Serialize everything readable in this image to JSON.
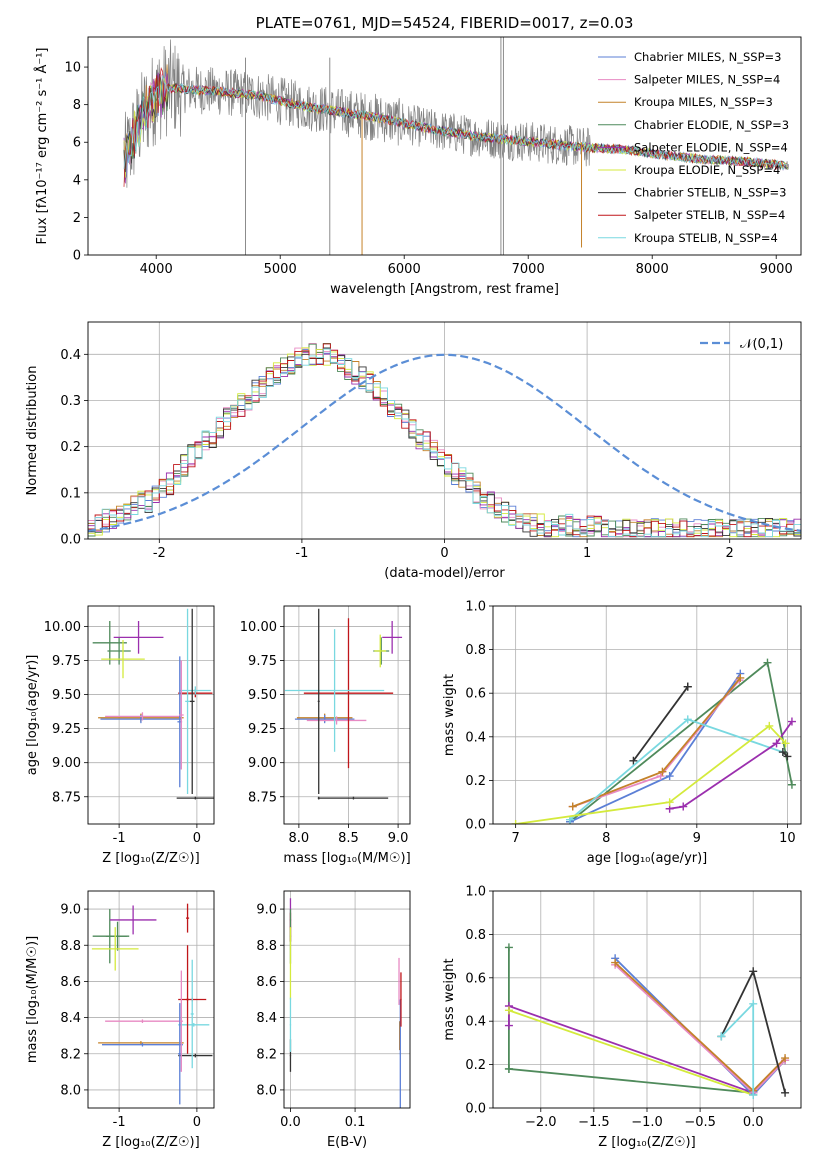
{
  "chart_data": [
    {
      "id": "spectrum",
      "type": "line",
      "title": "PLATE=0761, MJD=54524, FIBERID=0017, z=0.03",
      "xlabel": "wavelength [Angstrom, rest frame]",
      "ylabel": "Flux [fλ10⁻¹⁷ erg cm⁻² s⁻¹ Å⁻¹]",
      "xlim": [
        3450,
        9200
      ],
      "ylim": [
        0,
        11.6
      ],
      "xticks": [
        4000,
        5000,
        6000,
        7000,
        8000,
        9000
      ],
      "yticks": [
        0,
        2,
        4,
        6,
        8,
        10
      ],
      "legend_position": "top-right",
      "data_color": "#808080",
      "continuum": [
        [
          3730,
          4.6
        ],
        [
          3800,
          6.0
        ],
        [
          3900,
          7.5
        ],
        [
          4000,
          8.5
        ],
        [
          4100,
          8.9
        ],
        [
          4300,
          8.8
        ],
        [
          4500,
          8.7
        ],
        [
          4800,
          8.5
        ],
        [
          5000,
          8.2
        ],
        [
          5200,
          7.9
        ],
        [
          5500,
          7.6
        ],
        [
          5800,
          7.3
        ],
        [
          6000,
          7.0
        ],
        [
          6300,
          6.6
        ],
        [
          6600,
          6.3
        ],
        [
          6900,
          6.1
        ],
        [
          7200,
          5.9
        ],
        [
          7500,
          5.7
        ],
        [
          7800,
          5.6
        ],
        [
          8100,
          5.3
        ],
        [
          8400,
          5.1
        ],
        [
          8700,
          5.0
        ],
        [
          9000,
          4.8
        ],
        [
          9100,
          4.75
        ]
      ],
      "series": [
        {
          "name": "Chabrier MILES, N_SSP=3",
          "color": "#5b7fd6"
        },
        {
          "name": "Salpeter MILES, N_SSP=4",
          "color": "#e78ac3"
        },
        {
          "name": "Kroupa MILES, N_SSP=3",
          "color": "#c4822a"
        },
        {
          "name": "Chabrier ELODIE, N_SSP=3",
          "color": "#4f8a5b"
        },
        {
          "name": "Salpeter ELODIE, N_SSP=4",
          "color": "#9b2fae"
        },
        {
          "name": "Kroupa ELODIE, N_SSP=4",
          "color": "#d4ea3c"
        },
        {
          "name": "Chabrier STELIB, N_SSP=3",
          "color": "#333333"
        },
        {
          "name": "Salpeter STELIB, N_SSP=4",
          "color": "#c0161a"
        },
        {
          "name": "Kroupa STELIB, N_SSP=4",
          "color": "#79d8e0"
        }
      ]
    },
    {
      "id": "residuals",
      "type": "line",
      "xlabel": "(data-model)/error",
      "ylabel": "Normed distribution",
      "xlim": [
        -2.5,
        2.5
      ],
      "ylim": [
        0,
        0.47
      ],
      "xticks": [
        -2,
        -1,
        0,
        1,
        2
      ],
      "yticks": [
        0.0,
        0.1,
        0.2,
        0.3,
        0.4
      ],
      "grid": true,
      "legend_position": "top-right",
      "reference": {
        "name": "𝒩(0,1)",
        "color": "#5b8ed6"
      },
      "bin_width": 0.1,
      "bin_start": -2.5,
      "histogram": [
        0.03,
        0.03,
        0.04,
        0.04,
        0.05,
        0.06,
        0.07,
        0.08,
        0.08,
        0.09,
        0.11,
        0.12,
        0.14,
        0.16,
        0.18,
        0.19,
        0.21,
        0.22,
        0.24,
        0.26,
        0.27,
        0.29,
        0.3,
        0.32,
        0.33,
        0.35,
        0.36,
        0.37,
        0.38,
        0.39,
        0.4,
        0.4,
        0.39,
        0.4,
        0.39,
        0.38,
        0.37,
        0.36,
        0.35,
        0.34,
        0.32,
        0.31,
        0.29,
        0.27,
        0.26,
        0.24,
        0.22,
        0.21,
        0.19,
        0.18,
        0.16,
        0.14,
        0.13,
        0.12,
        0.1,
        0.09,
        0.08,
        0.07,
        0.06,
        0.05,
        0.04,
        0.04,
        0.03,
        0.03,
        0.02,
        0.02,
        0.03,
        0.03,
        0.02,
        0.02,
        0.03,
        0.03,
        0.02,
        0.02,
        0.02,
        0.02,
        0.02,
        0.02,
        0.02,
        0.02,
        0.02,
        0.02,
        0.02,
        0.02,
        0.02,
        0.02,
        0.02,
        0.02,
        0.02,
        0.02,
        0.02,
        0.02,
        0.02,
        0.02,
        0.02,
        0.02,
        0.02,
        0.02,
        0.02,
        0.02
      ]
    },
    {
      "id": "age-vs-z",
      "type": "scatter",
      "xlabel": "Z [log₁₀(Z/Z☉)]",
      "ylabel": "age  [log₁₀(age/yr)]",
      "xlim": [
        -1.4,
        0.22
      ],
      "ylim": [
        8.55,
        10.15
      ],
      "xticks": [
        -1,
        0
      ],
      "yticks": [
        8.75,
        9.0,
        9.25,
        9.5,
        9.75,
        10.0
      ],
      "grid": true,
      "errorbars": [
        {
          "color": "#4f8a5b",
          "x": -1.12,
          "y": 9.88,
          "xerr": 0.22,
          "yerr": 0.16
        },
        {
          "color": "#4f8a5b",
          "x": -1.0,
          "y": 9.82,
          "xerr": 0.15,
          "yerr": 0.1
        },
        {
          "color": "#d4ea3c",
          "x": -0.95,
          "y": 9.76,
          "xerr": 0.28,
          "yerr": 0.14
        },
        {
          "color": "#9b2fae",
          "x": -0.75,
          "y": 9.92,
          "xerr": 0.32,
          "yerr": 0.12
        },
        {
          "color": "#c4822a",
          "x": -0.72,
          "y": 9.33,
          "xerr": 0.55,
          "yerr": 0.03
        },
        {
          "color": "#5b7fd6",
          "x": -0.72,
          "y": 9.32,
          "xerr": 0.52,
          "yerr": 0.03
        },
        {
          "color": "#e78ac3",
          "x": -0.7,
          "y": 9.34,
          "xerr": 0.48,
          "yerr": 0.03
        },
        {
          "color": "#c0161a",
          "x": -0.02,
          "y": 9.51,
          "xerr": 0.22,
          "yerr": 0.03
        },
        {
          "color": "#79d8e0",
          "x": -0.02,
          "y": 9.53,
          "xerr": 0.2,
          "yerr": 0.03
        },
        {
          "color": "#5b7fd6",
          "x": -0.22,
          "y": 9.3,
          "xerr": 0.03,
          "yerr": 0.48
        },
        {
          "color": "#e78ac3",
          "x": -0.2,
          "y": 9.35,
          "xerr": 0.03,
          "yerr": 0.4
        },
        {
          "color": "#79d8e0",
          "x": -0.12,
          "y": 9.45,
          "xerr": 0.03,
          "yerr": 0.68
        },
        {
          "color": "#333333",
          "x": -0.06,
          "y": 9.45,
          "xerr": 0.03,
          "yerr": 0.68
        },
        {
          "color": "#333333",
          "x": -0.02,
          "y": 8.74,
          "xerr": 0.24,
          "yerr": 0.01
        }
      ]
    },
    {
      "id": "age-vs-mass",
      "type": "scatter",
      "xlabel": "mass [log₁₀(M/M☉)]",
      "ylabel": "",
      "xlim": [
        7.85,
        9.12
      ],
      "ylim": [
        8.55,
        10.15
      ],
      "xticks": [
        8.0,
        8.5,
        9.0
      ],
      "yticks": [
        8.75,
        9.0,
        9.25,
        9.5,
        9.75,
        10.0
      ],
      "grid": true,
      "errorbars": [
        {
          "color": "#4f8a5b",
          "x": 8.83,
          "y": 9.82,
          "xerr": 0.08,
          "yerr": 0.1
        },
        {
          "color": "#d4ea3c",
          "x": 8.82,
          "y": 9.82,
          "xerr": 0.06,
          "yerr": 0.12
        },
        {
          "color": "#9b2fae",
          "x": 8.94,
          "y": 9.92,
          "xerr": 0.1,
          "yerr": 0.12
        },
        {
          "color": "#c4822a",
          "x": 8.26,
          "y": 9.33,
          "xerr": 0.28,
          "yerr": 0.03
        },
        {
          "color": "#5b7fd6",
          "x": 8.26,
          "y": 9.32,
          "xerr": 0.3,
          "yerr": 0.03
        },
        {
          "color": "#e78ac3",
          "x": 8.38,
          "y": 9.31,
          "xerr": 0.3,
          "yerr": 0.03
        },
        {
          "color": "#c0161a",
          "x": 8.5,
          "y": 9.51,
          "xerr": 0.45,
          "yerr": 0.55
        },
        {
          "color": "#79d8e0",
          "x": 8.36,
          "y": 9.53,
          "xerr": 0.5,
          "yerr": 0.45
        },
        {
          "color": "#333333",
          "x": 8.2,
          "y": 8.74,
          "xerr": 0.01,
          "yerr": 0.01
        },
        {
          "color": "#333333",
          "x": 8.55,
          "y": 8.74,
          "xerr": 0.35,
          "yerr": 0.01
        },
        {
          "color": "#333333",
          "x": 8.2,
          "y": 9.45,
          "xerr": 0.01,
          "yerr": 0.68
        }
      ]
    },
    {
      "id": "weight-vs-age",
      "type": "line",
      "xlabel": "age  [log₁₀(age/yr)]",
      "ylabel": "mass weight",
      "xlim": [
        6.75,
        10.15
      ],
      "ylim": [
        0,
        1.0
      ],
      "xticks": [
        7,
        8,
        9,
        10
      ],
      "yticks": [
        0.0,
        0.2,
        0.4,
        0.6,
        0.8,
        1.0
      ],
      "grid": true,
      "series": [
        {
          "color": "#333333",
          "x": [
            8.3,
            8.9,
            8.9
          ],
          "y": [
            0.29,
            0.63,
            0.63
          ]
        },
        {
          "color": "#4f8a5b",
          "x": [
            7.6,
            9.78,
            10.05
          ],
          "y": [
            0.01,
            0.74,
            0.18
          ]
        },
        {
          "color": "#5b7fd6",
          "x": [
            7.6,
            8.7,
            9.48
          ],
          "y": [
            0.01,
            0.22,
            0.69
          ]
        },
        {
          "color": "#e78ac3",
          "x": [
            7.63,
            8.6,
            9.47
          ],
          "y": [
            0.08,
            0.22,
            0.66
          ]
        },
        {
          "color": "#c4822a",
          "x": [
            7.63,
            8.62,
            9.48
          ],
          "y": [
            0.08,
            0.24,
            0.67
          ]
        },
        {
          "color": "#79d8e0",
          "x": [
            7.6,
            8.9,
            9.95
          ],
          "y": [
            0.02,
            0.48,
            0.33
          ]
        },
        {
          "color": "#9b2fae",
          "x": [
            8.7,
            8.85,
            9.88,
            10.05
          ],
          "y": [
            0.07,
            0.08,
            0.37,
            0.47
          ]
        },
        {
          "color": "#d4ea3c",
          "x": [
            7.0,
            8.7,
            9.8,
            9.98
          ],
          "y": [
            0.0,
            0.1,
            0.45,
            0.37
          ]
        },
        {
          "color": "#333333",
          "x": [
            9.95,
            10.0
          ],
          "y": [
            0.33,
            0.31
          ]
        }
      ]
    },
    {
      "id": "mass-vs-z",
      "type": "scatter",
      "xlabel": "Z [log₁₀(Z/Z☉)]",
      "ylabel": "mass [log₁₀(M/M☉)]",
      "xlim": [
        -1.4,
        0.22
      ],
      "ylim": [
        7.9,
        9.1
      ],
      "xticks": [
        -1,
        0
      ],
      "yticks": [
        8.0,
        8.2,
        8.4,
        8.6,
        8.8,
        9.0
      ],
      "grid": true,
      "errorbars": [
        {
          "color": "#4f8a5b",
          "x": -1.12,
          "y": 8.85,
          "xerr": 0.22,
          "yerr": 0.15
        },
        {
          "color": "#4f8a5b",
          "x": -1.02,
          "y": 8.85,
          "xerr": 0.15,
          "yerr": 0.08
        },
        {
          "color": "#d4ea3c",
          "x": -1.05,
          "y": 8.78,
          "xerr": 0.3,
          "yerr": 0.12
        },
        {
          "color": "#9b2fae",
          "x": -0.82,
          "y": 8.94,
          "xerr": 0.3,
          "yerr": 0.08
        },
        {
          "color": "#c4822a",
          "x": -0.72,
          "y": 8.26,
          "xerr": 0.55,
          "yerr": 0.01
        },
        {
          "color": "#5b7fd6",
          "x": -0.7,
          "y": 8.25,
          "xerr": 0.52,
          "yerr": 0.01
        },
        {
          "color": "#e78ac3",
          "x": -0.7,
          "y": 8.38,
          "xerr": 0.48,
          "yerr": 0.01
        },
        {
          "color": "#c0161a",
          "x": -0.06,
          "y": 8.5,
          "xerr": 0.18,
          "yerr": 0.01
        },
        {
          "color": "#79d8e0",
          "x": -0.04,
          "y": 8.36,
          "xerr": 0.2,
          "yerr": 0.01
        },
        {
          "color": "#333333",
          "x": -0.02,
          "y": 8.19,
          "xerr": 0.22,
          "yerr": 0.01
        },
        {
          "color": "#5b7fd6",
          "x": -0.22,
          "y": 8.2,
          "xerr": 0.02,
          "yerr": 0.28
        },
        {
          "color": "#e78ac3",
          "x": -0.2,
          "y": 8.38,
          "xerr": 0.02,
          "yerr": 0.28
        },
        {
          "color": "#c0161a",
          "x": -0.12,
          "y": 8.95,
          "xerr": 0.02,
          "yerr": 0.08
        },
        {
          "color": "#c0161a",
          "x": -0.12,
          "y": 8.5,
          "xerr": 0.02,
          "yerr": 0.3
        },
        {
          "color": "#79d8e0",
          "x": -0.06,
          "y": 8.42,
          "xerr": 0.02,
          "yerr": 0.3
        }
      ]
    },
    {
      "id": "mass-vs-ebv",
      "type": "scatter",
      "xlabel": "E(B-V)",
      "ylabel": "",
      "xlim": [
        -0.01,
        0.185
      ],
      "ylim": [
        7.9,
        9.1
      ],
      "xticks": [
        0.0,
        0.1
      ],
      "yticks": [
        8.0,
        8.2,
        8.4,
        8.6,
        8.8,
        9.0
      ],
      "grid": true,
      "errorbars": [
        {
          "color": "#9b2fae",
          "x": 0.0,
          "y": 8.94,
          "xerr": 0.001,
          "yerr": 0.12
        },
        {
          "color": "#c0161a",
          "x": 0.0,
          "y": 8.9,
          "xerr": 0.001,
          "yerr": 0.08
        },
        {
          "color": "#4f8a5b",
          "x": 0.0,
          "y": 8.85,
          "xerr": 0.001,
          "yerr": 0.15
        },
        {
          "color": "#d4ea3c",
          "x": 0.0,
          "y": 8.7,
          "xerr": 0.001,
          "yerr": 0.2
        },
        {
          "color": "#333333",
          "x": 0.0,
          "y": 8.19,
          "xerr": 0.001,
          "yerr": 0.09
        },
        {
          "color": "#79d8e0",
          "x": 0.0,
          "y": 8.36,
          "xerr": 0.001,
          "yerr": 0.15
        },
        {
          "color": "#e78ac3",
          "x": 0.168,
          "y": 8.6,
          "xerr": 0.001,
          "yerr": 0.13
        },
        {
          "color": "#c4822a",
          "x": 0.169,
          "y": 8.3,
          "xerr": 0.001,
          "yerr": 0.08
        },
        {
          "color": "#5b7fd6",
          "x": 0.17,
          "y": 8.2,
          "xerr": 0.001,
          "yerr": 0.3
        },
        {
          "color": "#c0161a",
          "x": 0.171,
          "y": 8.5,
          "xerr": 0.001,
          "yerr": 0.15
        }
      ]
    },
    {
      "id": "weight-vs-z",
      "type": "line",
      "xlabel": "Z [log₁₀(Z/Z☉)]",
      "ylabel": "mass weight",
      "xlim": [
        -2.45,
        0.45
      ],
      "ylim": [
        0,
        1.0
      ],
      "xticks": [
        -2.0,
        -1.5,
        -1.0,
        -0.5,
        0.0
      ],
      "yticks": [
        0.0,
        0.2,
        0.4,
        0.6,
        0.8,
        1.0
      ],
      "grid": true,
      "series": [
        {
          "color": "#4f8a5b",
          "x": [
            -2.3,
            -2.3,
            -2.3,
            0.0
          ],
          "y": [
            0.74,
            0.18,
            0.18,
            0.07
          ]
        },
        {
          "color": "#9b2fae",
          "x": [
            -2.3,
            -2.3,
            0.0
          ],
          "y": [
            0.38,
            0.47,
            0.07
          ]
        },
        {
          "color": "#d4ea3c",
          "x": [
            -2.3,
            0.0
          ],
          "y": [
            0.45,
            0.06
          ]
        },
        {
          "color": "#5b7fd6",
          "x": [
            -1.3,
            0.0,
            0.3
          ],
          "y": [
            0.69,
            0.06,
            0.22
          ]
        },
        {
          "color": "#e78ac3",
          "x": [
            -1.3,
            0.0,
            0.3
          ],
          "y": [
            0.66,
            0.07,
            0.22
          ]
        },
        {
          "color": "#c4822a",
          "x": [
            -1.3,
            0.0,
            0.3
          ],
          "y": [
            0.67,
            0.08,
            0.23
          ]
        },
        {
          "color": "#333333",
          "x": [
            -0.3,
            0.0,
            0.3
          ],
          "y": [
            0.33,
            0.63,
            0.07
          ]
        },
        {
          "color": "#79d8e0",
          "x": [
            -0.3,
            0.0,
            0.0
          ],
          "y": [
            0.33,
            0.48,
            0.06
          ]
        }
      ]
    }
  ]
}
